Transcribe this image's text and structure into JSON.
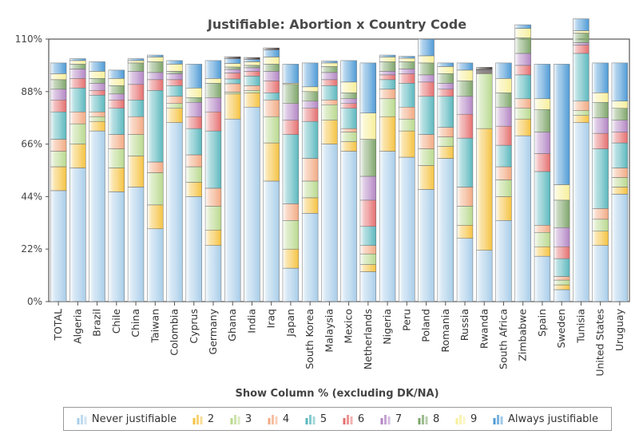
{
  "chart_data": {
    "type": "bar",
    "stacked": true,
    "title": "Justifiable: Abortion x Country Code",
    "xlabel": "Show Column % (excluding DK/NA)",
    "ylabel": "",
    "ylim": [
      0,
      110
    ],
    "yticks": [
      "0%",
      "22%",
      "44%",
      "66%",
      "88%",
      "110%"
    ],
    "grid": false,
    "legend_position": "bottom",
    "categories": [
      "TOTAL",
      "Algeria",
      "Brazil",
      "Chile",
      "China",
      "Taiwan",
      "Colombia",
      "Cyprus",
      "Germany",
      "Ghana",
      "India",
      "Iraq",
      "Japan",
      "South Korea",
      "Malaysia",
      "Mexico",
      "Netherlands",
      "Nigeria",
      "Peru",
      "Poland",
      "Romania",
      "Russia",
      "Rwanda",
      "South Africa",
      "Zimbabwe",
      "Spain",
      "Sweden",
      "Tunisia",
      "United States",
      "Uruguay"
    ],
    "series": [
      {
        "name": "Never justifiable",
        "color": "#a8cde9",
        "values": [
          46.5,
          56.0,
          71.5,
          46.0,
          48.0,
          30.5,
          75.0,
          44.0,
          23.5,
          76.5,
          81.5,
          50.5,
          14.0,
          37.0,
          66.0,
          63.0,
          12.5,
          63.0,
          60.5,
          47.0,
          60.0,
          26.5,
          21.5,
          34.0,
          69.5,
          19.0,
          5.0,
          75.0,
          23.5,
          45.0
        ]
      },
      {
        "name": "2",
        "color": "#f5c342",
        "values": [
          10.0,
          10.0,
          4.0,
          10.0,
          13.0,
          10.0,
          6.0,
          6.0,
          6.5,
          10.5,
          6.0,
          16.0,
          8.0,
          6.5,
          10.0,
          4.0,
          3.0,
          14.5,
          11.0,
          10.0,
          5.0,
          5.5,
          51.0,
          10.0,
          7.0,
          4.0,
          2.0,
          3.0,
          6.0,
          3.0
        ]
      },
      {
        "name": "3",
        "color": "#b9d98e",
        "values": [
          6.5,
          8.5,
          2.0,
          8.0,
          9.0,
          13.5,
          2.0,
          6.5,
          10.0,
          0.8,
          1.0,
          11.0,
          12.0,
          7.0,
          6.5,
          4.0,
          4.5,
          7.5,
          5.0,
          7.0,
          4.0,
          8.0,
          23.0,
          7.0,
          4.5,
          6.0,
          2.0,
          2.0,
          5.0,
          4.0
        ]
      },
      {
        "name": "4",
        "color": "#f2aa83",
        "values": [
          5.0,
          5.0,
          2.0,
          6.0,
          7.5,
          4.5,
          3.0,
          5.0,
          7.5,
          3.5,
          2.0,
          7.0,
          7.0,
          9.5,
          2.0,
          1.5,
          3.5,
          4.0,
          5.0,
          6.0,
          4.0,
          8.0,
          0.3,
          5.5,
          4.0,
          3.0,
          1.5,
          4.0,
          4.5,
          4.0
        ]
      },
      {
        "name": "5",
        "color": "#5bb8be",
        "values": [
          11.5,
          10.0,
          7.0,
          11.0,
          7.0,
          30.0,
          4.5,
          11.0,
          24.0,
          2.0,
          4.0,
          3.0,
          29.0,
          15.5,
          6.0,
          8.5,
          8.0,
          4.0,
          10.0,
          16.0,
          13.0,
          20.5,
          0.3,
          9.0,
          10.0,
          22.5,
          7.5,
          20.0,
          25.0,
          10.5
        ]
      },
      {
        "name": "6",
        "color": "#e56f6f",
        "values": [
          5.0,
          4.0,
          2.0,
          3.5,
          6.5,
          4.5,
          2.5,
          5.0,
          8.0,
          2.5,
          2.0,
          5.0,
          6.0,
          5.5,
          2.5,
          2.0,
          11.0,
          2.0,
          4.0,
          6.0,
          3.0,
          10.0,
          0.3,
          8.0,
          4.0,
          7.5,
          5.0,
          3.5,
          6.5,
          4.5
        ]
      },
      {
        "name": "7",
        "color": "#b386c4",
        "values": [
          4.5,
          4.0,
          3.0,
          2.5,
          5.5,
          3.0,
          2.5,
          6.0,
          6.0,
          1.5,
          1.5,
          4.0,
          7.0,
          3.0,
          3.0,
          2.0,
          10.0,
          1.5,
          2.0,
          3.0,
          2.5,
          7.5,
          0.3,
          8.0,
          5.0,
          9.0,
          8.0,
          1.0,
          6.5,
          5.0
        ]
      },
      {
        "name": "8",
        "color": "#7ea56a",
        "values": [
          4.0,
          2.0,
          2.0,
          3.5,
          3.5,
          4.5,
          1.0,
          2.0,
          6.0,
          1.0,
          1.0,
          3.0,
          8.0,
          4.0,
          2.5,
          2.5,
          15.5,
          4.0,
          3.0,
          5.0,
          4.0,
          6.5,
          0.3,
          6.0,
          6.5,
          9.5,
          11.5,
          4.0,
          6.5,
          5.0
        ]
      },
      {
        "name": "9",
        "color": "#f7ef9a",
        "values": [
          2.5,
          1.5,
          3.0,
          3.0,
          1.0,
          2.0,
          3.0,
          4.0,
          2.0,
          1.5,
          1.5,
          3.0,
          0.5,
          2.0,
          1.5,
          4.5,
          11.0,
          2.0,
          1.5,
          3.0,
          3.0,
          4.5,
          0.2,
          6.0,
          4.0,
          4.5,
          6.5,
          1.0,
          4.0,
          3.0
        ]
      },
      {
        "name": "Always justifiable",
        "color": "#4f9bd6",
        "values": [
          4.5,
          0.8,
          4.0,
          3.5,
          0.8,
          0.8,
          1.5,
          10.0,
          7.5,
          2.0,
          1.0,
          3.0,
          8.0,
          10.0,
          0.8,
          9.0,
          21.0,
          0.8,
          0.8,
          7.0,
          1.5,
          3.0,
          0.2,
          6.5,
          1.5,
          14.5,
          50.5,
          5.0,
          12.5,
          16.0
        ]
      },
      {
        "name": "",
        "color": "#3b2b2b",
        "values": [
          0,
          0,
          0,
          0,
          0,
          0,
          0,
          0,
          0,
          0.8,
          0.8,
          0.8,
          0,
          0,
          0,
          0,
          0,
          0,
          0,
          0,
          0,
          0,
          0.8,
          0,
          0,
          0,
          0,
          0,
          0,
          0
        ]
      }
    ]
  }
}
